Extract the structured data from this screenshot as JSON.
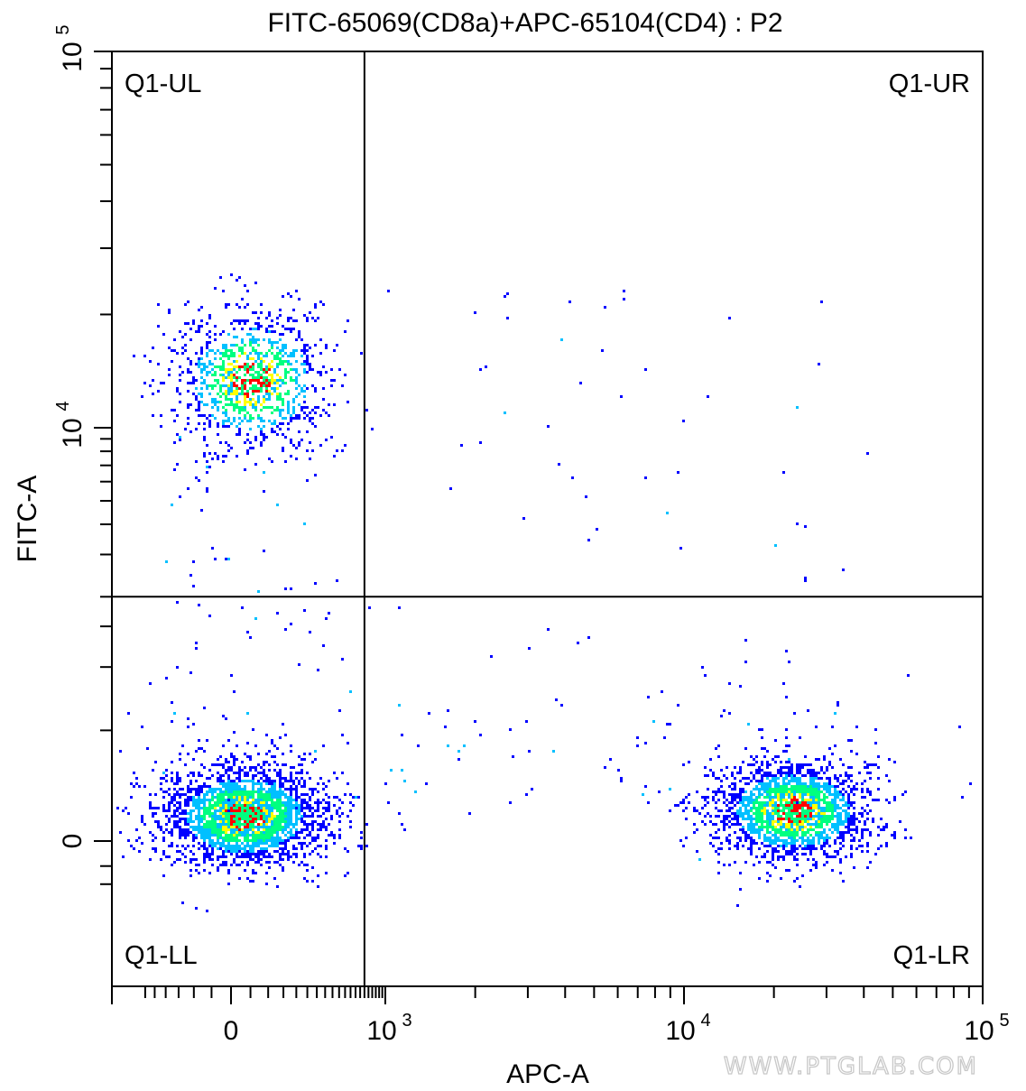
{
  "chart_data": {
    "type": "scatter",
    "title": "FITC-65069(CD8a)+APC-65104(CD4) : P2",
    "xlabel": "APC-A",
    "ylabel": "FITC-A",
    "x_scale": "biexponential",
    "y_scale": "biexponential",
    "x_ticks": [
      {
        "value": 0,
        "base": "0",
        "exp": ""
      },
      {
        "value": 1000,
        "base": "10",
        "exp": "3"
      },
      {
        "value": 10000,
        "base": "10",
        "exp": "4"
      },
      {
        "value": 100000,
        "base": "10",
        "exp": "5"
      }
    ],
    "y_ticks": [
      {
        "value": 0,
        "base": "0",
        "exp": ""
      },
      {
        "value": 10000,
        "base": "10",
        "exp": "4"
      },
      {
        "value": 100000,
        "base": "10",
        "exp": "5"
      }
    ],
    "gate": {
      "x": 700,
      "y": 2000
    },
    "quadrants": [
      {
        "label": "Q1-UL",
        "position": "top-left"
      },
      {
        "label": "Q1-UR",
        "position": "top-right"
      },
      {
        "label": "Q1-LL",
        "position": "bottom-left"
      },
      {
        "label": "Q1-LR",
        "position": "bottom-right"
      }
    ],
    "populations": [
      {
        "name": "",
        "center_apc": 50,
        "center_fitc": 13500,
        "points": 1100
      },
      {
        "name": "",
        "center_apc": 30,
        "center_fitc": 100,
        "points": 2600
      },
      {
        "name": "",
        "center_apc": 23000,
        "center_fitc": 120,
        "points": 2000
      }
    ],
    "density_colors": [
      "#0000ff",
      "#00c0ff",
      "#00ff80",
      "#ffff00",
      "#ff0000"
    ],
    "grid": false
  },
  "watermark": "WWW.PTGLAB.COM"
}
